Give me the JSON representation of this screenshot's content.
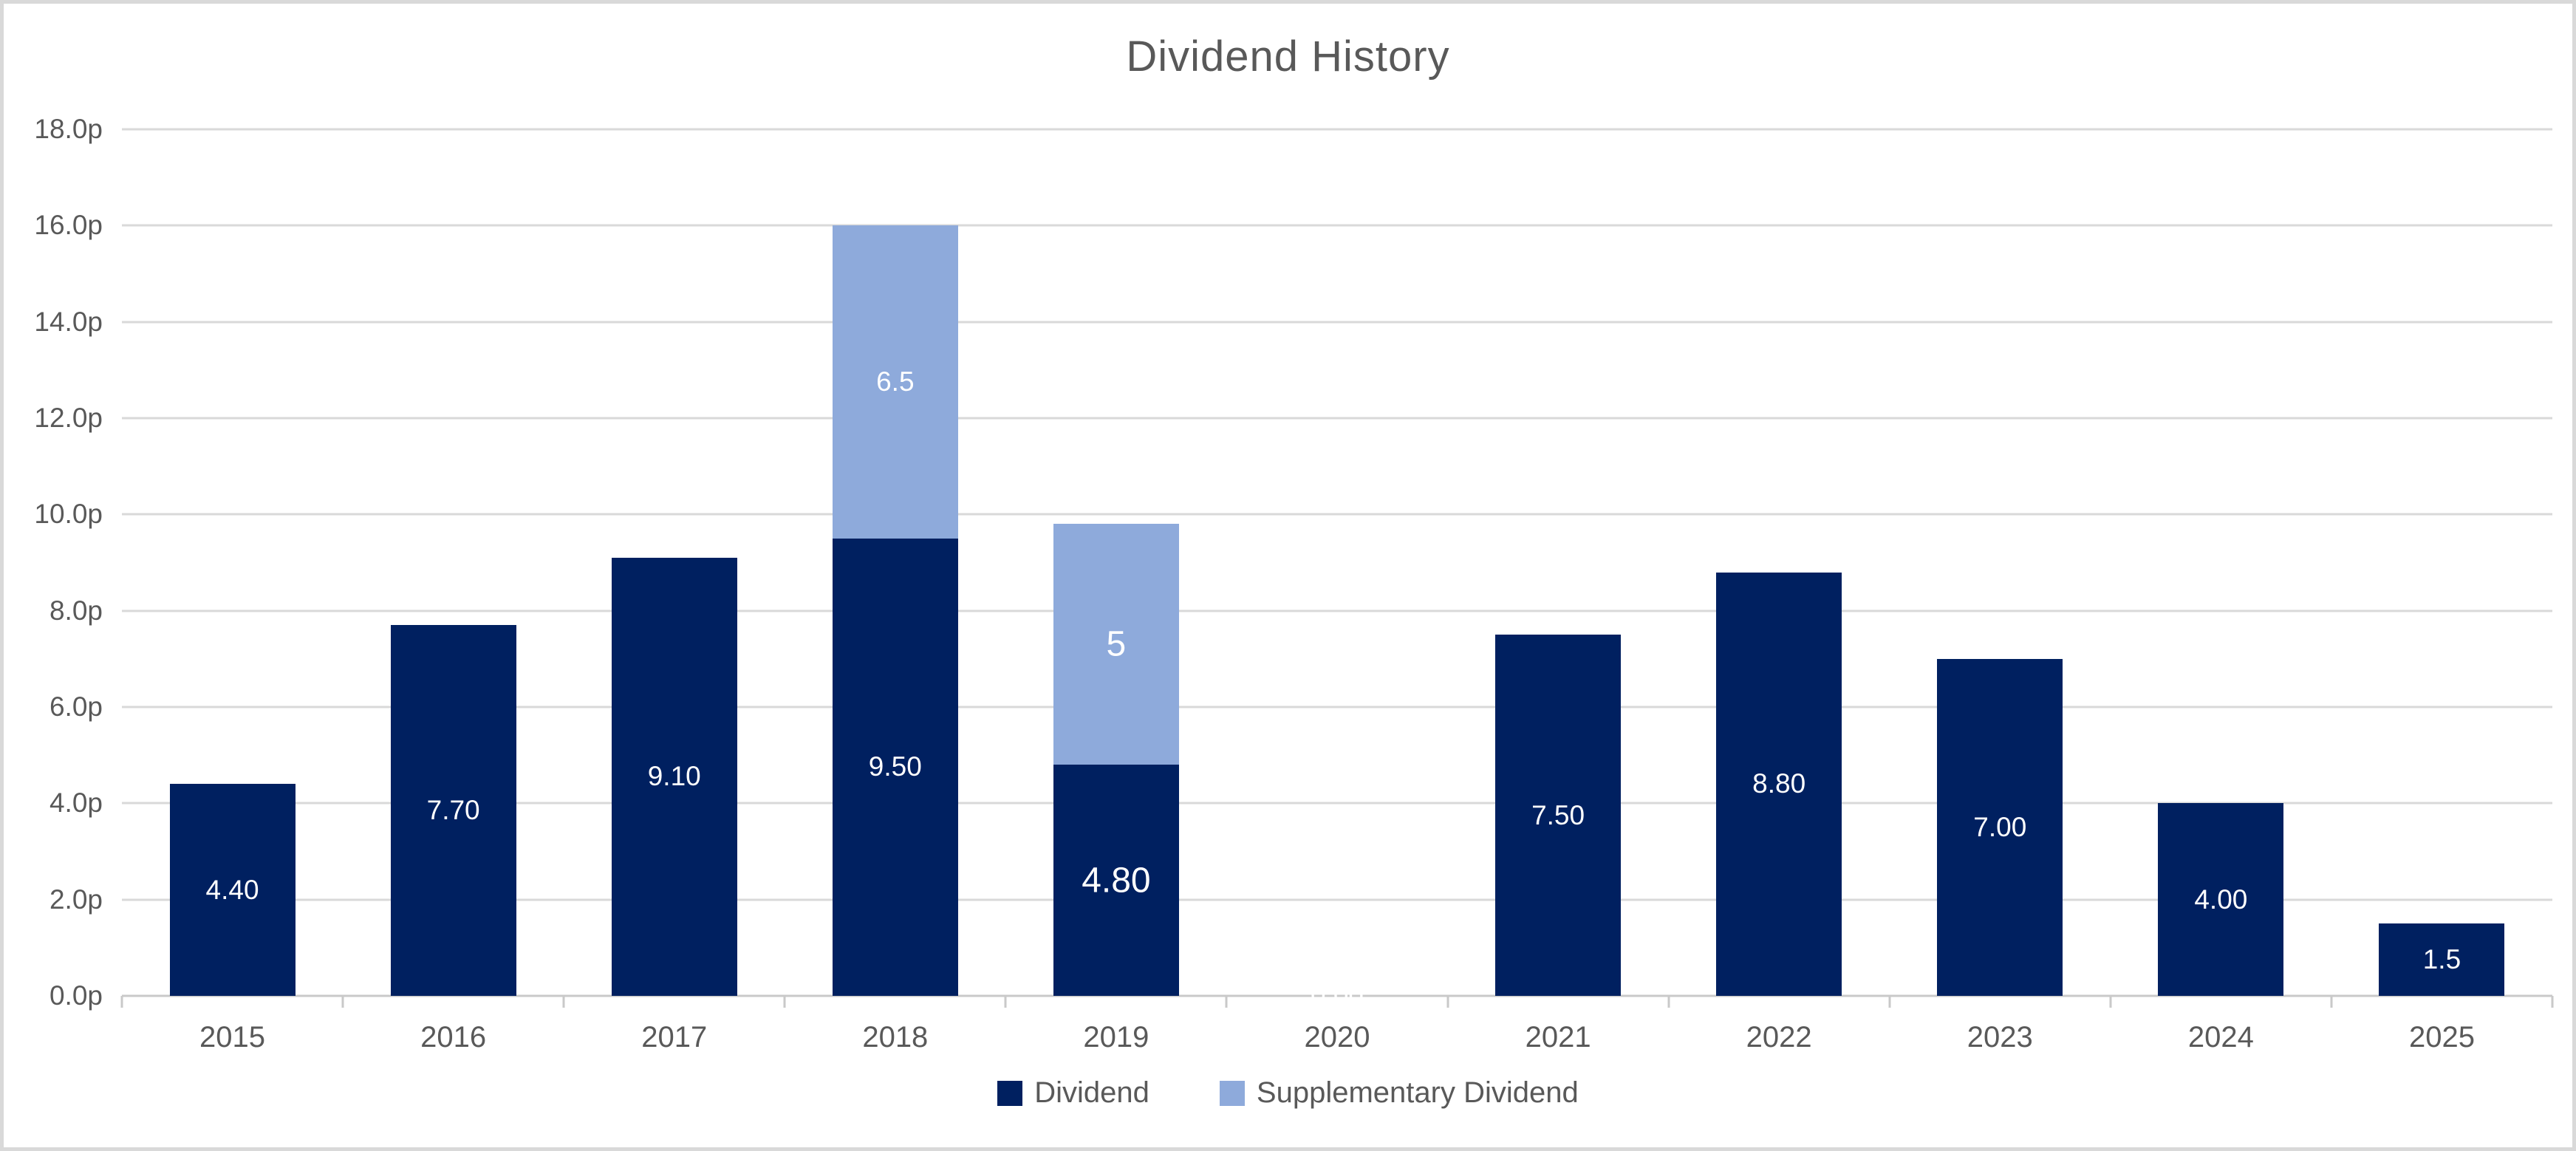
{
  "title": "Dividend History",
  "colors": {
    "dividend": "#002060",
    "supplementary": "#8EAADB",
    "title_text": "#595959",
    "axis_text": "#595959",
    "gridline": "#D9D9D9",
    "axis_line": "#C9C9C9",
    "frame_border": "#D9D9D9",
    "bar_label_text": "#FFFFFF"
  },
  "legend": {
    "items": [
      {
        "label": "Dividend",
        "color_key": "dividend"
      },
      {
        "label": "Supplementary Dividend",
        "color_key": "supplementary"
      }
    ]
  },
  "chart_data": {
    "type": "bar",
    "stacked": true,
    "title": "Dividend History",
    "xlabel": "",
    "ylabel": "",
    "unit": "pence",
    "categories": [
      "2015",
      "2016",
      "2017",
      "2018",
      "2019",
      "2020",
      "2021",
      "2022",
      "2023",
      "2024",
      "2025"
    ],
    "series": [
      {
        "name": "Dividend",
        "color_key": "dividend",
        "values": [
          4.4,
          7.7,
          9.1,
          9.5,
          4.8,
          0,
          7.5,
          8.8,
          7,
          4,
          1.5
        ],
        "labels": [
          "4.40",
          "7.70",
          "9.10",
          "9.50",
          "4.80",
          "0.00",
          "7.50",
          "8.80",
          "7.00",
          "4.00",
          "1.5"
        ]
      },
      {
        "name": "Supplementary Dividend",
        "color_key": "supplementary",
        "values": [
          0,
          0,
          0,
          6.5,
          5,
          0,
          0,
          0,
          0,
          0,
          0
        ],
        "labels": [
          "",
          "",
          "",
          "6.5",
          "5",
          "",
          "",
          "",
          "",
          "",
          ""
        ]
      }
    ],
    "ylim": [
      0,
      18
    ],
    "yticks": [
      {
        "value": 0,
        "label": "0.0p"
      },
      {
        "value": 2,
        "label": "2.0p"
      },
      {
        "value": 4,
        "label": "4.0p"
      },
      {
        "value": 6,
        "label": "6.0p"
      },
      {
        "value": 8,
        "label": "8.0p"
      },
      {
        "value": 10,
        "label": "10.0p"
      },
      {
        "value": 12,
        "label": "12.0p"
      },
      {
        "value": 14,
        "label": "14.0p"
      },
      {
        "value": 16,
        "label": "16.0p"
      },
      {
        "value": 18,
        "label": "18.0p"
      }
    ],
    "grid": true,
    "legend_position": "bottom",
    "emphasized_label_categories": [
      "2019"
    ]
  }
}
